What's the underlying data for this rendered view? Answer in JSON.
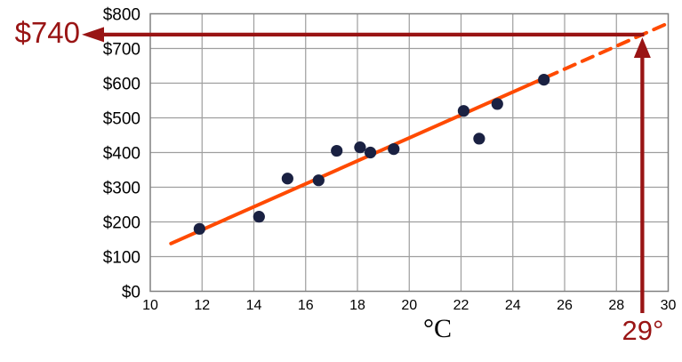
{
  "chart_data": {
    "type": "scatter",
    "title": "",
    "xlabel": "°C",
    "ylabel": "",
    "xlim": [
      10,
      30
    ],
    "ylim": [
      0,
      800
    ],
    "grid": true,
    "legend": "none",
    "x_ticks": [
      {
        "v": 10,
        "label": "10"
      },
      {
        "v": 12,
        "label": "12"
      },
      {
        "v": 14,
        "label": "14"
      },
      {
        "v": 16,
        "label": "16"
      },
      {
        "v": 18,
        "label": "18"
      },
      {
        "v": 20,
        "label": "20"
      },
      {
        "v": 22,
        "label": "22"
      },
      {
        "v": 24,
        "label": "24"
      },
      {
        "v": 26,
        "label": "26"
      },
      {
        "v": 28,
        "label": "28"
      },
      {
        "v": 30,
        "label": "30"
      }
    ],
    "y_ticks": [
      {
        "v": 0,
        "label": "$0"
      },
      {
        "v": 100,
        "label": "$100"
      },
      {
        "v": 200,
        "label": "$200"
      },
      {
        "v": 300,
        "label": "$300"
      },
      {
        "v": 400,
        "label": "$400"
      },
      {
        "v": 500,
        "label": "$500"
      },
      {
        "v": 600,
        "label": "$600"
      },
      {
        "v": 700,
        "label": "$700"
      },
      {
        "v": 800,
        "label": "$800"
      }
    ],
    "points": [
      {
        "x": 11.9,
        "y": 180
      },
      {
        "x": 14.2,
        "y": 215
      },
      {
        "x": 15.3,
        "y": 325
      },
      {
        "x": 16.5,
        "y": 320
      },
      {
        "x": 17.2,
        "y": 405
      },
      {
        "x": 18.1,
        "y": 415
      },
      {
        "x": 18.5,
        "y": 400
      },
      {
        "x": 19.4,
        "y": 410
      },
      {
        "x": 22.1,
        "y": 520
      },
      {
        "x": 22.7,
        "y": 440
      },
      {
        "x": 23.4,
        "y": 540
      },
      {
        "x": 25.2,
        "y": 610
      }
    ],
    "trend": {
      "slope": 33.1,
      "intercept": -219.9,
      "x_start": 10.8,
      "solid_until": 25.3,
      "x_end": 29.97,
      "extrapolation_style": "dashed"
    },
    "annotation": {
      "x": 29,
      "y": 740,
      "x_label": "29°",
      "y_label": "$740"
    },
    "colors": {
      "trend_line": "#FF4A00",
      "markers": "#1A2142",
      "annotation": "#991414",
      "grid": "#9E9E9E",
      "plot_border": "#808080",
      "tick_labels": "#000000"
    }
  }
}
